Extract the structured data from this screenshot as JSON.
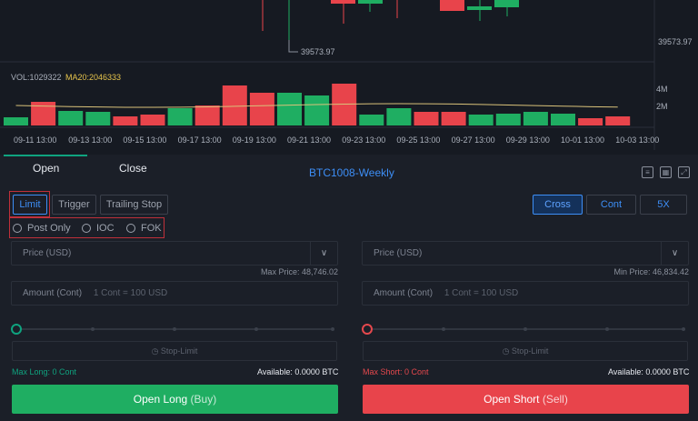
{
  "chart": {
    "crosshair_price": "39573.97",
    "axis_price": "39573.97",
    "vol_label": "VOL:1029322",
    "ma_label": "MA20:2046333",
    "vol_axis": [
      "4M",
      "2M"
    ],
    "dates": [
      "09-11 13:00",
      "09-13 13:00",
      "09-15 13:00",
      "09-17 13:00",
      "09-19 13:00",
      "09-21 13:00",
      "09-23 13:00",
      "09-25 13:00",
      "09-27 13:00",
      "09-29 13:00",
      "10-01 13:00",
      "10-03 13:00"
    ],
    "colors": {
      "up": "#1fae62",
      "down": "#e8444b",
      "ma": "#d9c27a"
    }
  },
  "tabs": {
    "open": "Open",
    "close": "Close"
  },
  "contract": "BTC1008-Weekly",
  "order_types": {
    "limit": "Limit",
    "trigger": "Trigger",
    "trailing": "Trailing Stop"
  },
  "options": {
    "post_only": "Post Only",
    "ioc": "IOC",
    "fok": "FOK"
  },
  "mode": {
    "cross": "Cross",
    "cont": "Cont",
    "leverage": "5X"
  },
  "long": {
    "price_label": "Price (USD)",
    "limit_price": "Max Price: 48,746.02",
    "amount_label": "Amount (Cont)",
    "amount_placeholder": "1 Cont = 100 USD",
    "stop_limit": "Stop-Limit",
    "max": "Max Long: 0 Cont",
    "available": "Available: 0.0000 BTC",
    "button": "Open Long",
    "button_sub": "(Buy)"
  },
  "short": {
    "price_label": "Price (USD)",
    "limit_price": "Min Price: 46,834.42",
    "amount_label": "Amount (Cont)",
    "amount_placeholder": "1 Cont = 100 USD",
    "stop_limit": "Stop-Limit",
    "max": "Max Short: 0 Cont",
    "available": "Available: 0.0000 BTC",
    "button": "Open Short",
    "button_sub": "(Sell)"
  }
}
